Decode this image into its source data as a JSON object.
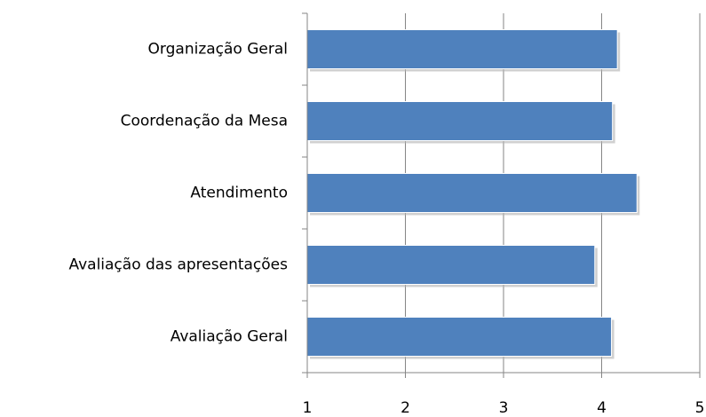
{
  "chart_data": {
    "type": "bar",
    "orientation": "horizontal",
    "categories": [
      "Organização Geral",
      "Coordenação da Mesa",
      "Atendimento",
      "Avaliação das apresentações",
      "Avaliação Geral"
    ],
    "values": [
      4.16,
      4.11,
      4.36,
      3.93,
      4.1
    ],
    "color": "#4f81bd",
    "xlim": [
      1,
      5
    ],
    "xticks": [
      1,
      2,
      3,
      4,
      5
    ],
    "grid": true
  }
}
